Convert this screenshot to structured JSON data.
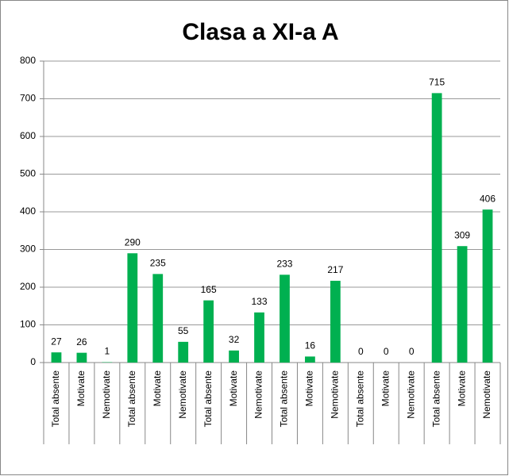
{
  "chart_data": {
    "type": "bar",
    "title": "Clasa a XI-a A",
    "categories": [
      "Total absente",
      "Motivate",
      "Nemotivate",
      "Total absente",
      "Motivate",
      "Nemotivate",
      "Total absente",
      "Motivate",
      "Nemotivate",
      "Total absente",
      "Motivate",
      "Nemotivate",
      "Total absente",
      "Motivate",
      "Nemotivate",
      "Total absente",
      "Motivate",
      "Nemotivate"
    ],
    "values": [
      27,
      26,
      1,
      290,
      235,
      55,
      165,
      32,
      133,
      233,
      16,
      217,
      0,
      0,
      0,
      715,
      309,
      406
    ],
    "color": "#00b050",
    "ylim": [
      0,
      800
    ],
    "yticks": [
      0,
      100,
      200,
      300,
      400,
      500,
      600,
      700,
      800
    ],
    "grid": true
  }
}
